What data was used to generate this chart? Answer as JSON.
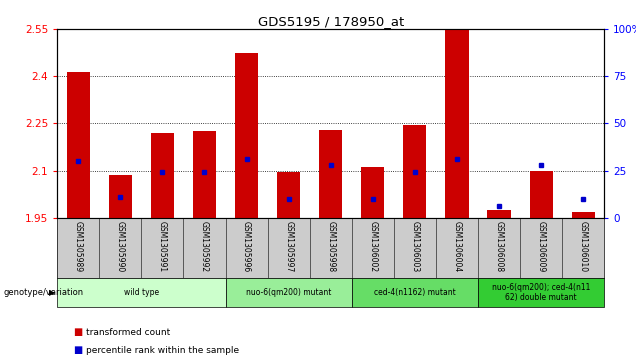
{
  "title": "GDS5195 / 178950_at",
  "samples": [
    "GSM1305989",
    "GSM1305990",
    "GSM1305991",
    "GSM1305992",
    "GSM1305996",
    "GSM1305997",
    "GSM1305998",
    "GSM1306002",
    "GSM1306003",
    "GSM1306004",
    "GSM1306008",
    "GSM1306009",
    "GSM1306010"
  ],
  "red_values": [
    2.415,
    2.085,
    2.22,
    2.225,
    2.475,
    2.095,
    2.23,
    2.11,
    2.245,
    2.555,
    1.975,
    2.1,
    1.97
  ],
  "blue_percentile": [
    30,
    11,
    24,
    24,
    31,
    10,
    28,
    10,
    24,
    31,
    6,
    28,
    10
  ],
  "ylim_left": [
    1.95,
    2.55
  ],
  "ylim_right": [
    0,
    100
  ],
  "yticks_left": [
    1.95,
    2.1,
    2.25,
    2.4,
    2.55
  ],
  "yticks_right": [
    0,
    25,
    50,
    75,
    100
  ],
  "ytick_labels_left": [
    "1.95",
    "2.1",
    "2.25",
    "2.4",
    "2.55"
  ],
  "ytick_labels_right": [
    "0",
    "25",
    "50",
    "75",
    "100%"
  ],
  "hlines": [
    2.1,
    2.25,
    2.4
  ],
  "groups": [
    {
      "label": "wild type",
      "indices": [
        0,
        1,
        2,
        3
      ],
      "color": "#ccffcc"
    },
    {
      "label": "nuo-6(qm200) mutant",
      "indices": [
        4,
        5,
        6
      ],
      "color": "#99ee99"
    },
    {
      "label": "ced-4(n1162) mutant",
      "indices": [
        7,
        8,
        9
      ],
      "color": "#66dd66"
    },
    {
      "label": "nuo-6(qm200); ced-4(n11\n62) double mutant",
      "indices": [
        10,
        11,
        12
      ],
      "color": "#33cc33"
    }
  ],
  "bar_width": 0.55,
  "baseline": 1.95,
  "red_color": "#cc0000",
  "blue_color": "#0000cc",
  "bg_color": "#cccccc",
  "plot_bg": "#ffffff",
  "genotype_label": "genotype/variation",
  "legend_items": [
    {
      "label": "transformed count",
      "color": "#cc0000"
    },
    {
      "label": "percentile rank within the sample",
      "color": "#0000cc"
    }
  ]
}
